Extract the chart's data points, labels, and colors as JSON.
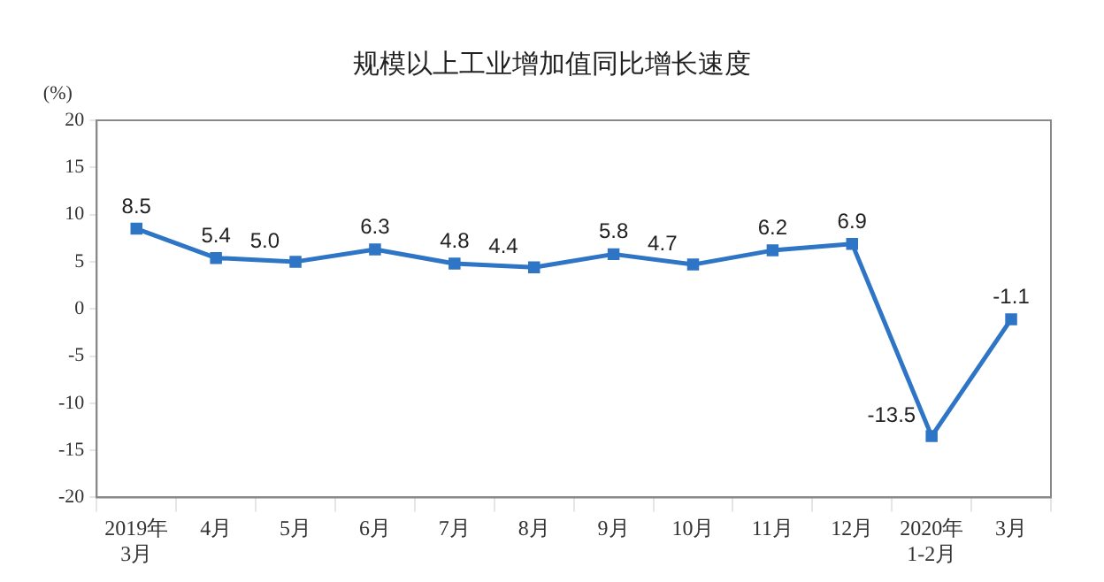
{
  "chart_data": {
    "type": "line",
    "title": "规模以上工业增加值同比增长速度",
    "ylabel": "(%)",
    "categories": [
      "2019年\n3月",
      "4月",
      "5月",
      "6月",
      "7月",
      "8月",
      "9月",
      "10月",
      "11月",
      "12月",
      "2020年\n1-2月",
      "3月"
    ],
    "series": [
      {
        "color": "#2e75c6",
        "values": [
          8.5,
          5.4,
          5.0,
          6.3,
          4.8,
          4.4,
          5.8,
          4.7,
          6.2,
          6.9,
          -13.5,
          -1.1
        ],
        "value_labels": [
          "8.5",
          "5.4",
          "5.0",
          "6.3",
          "4.8",
          "4.4",
          "5.8",
          "4.7",
          "6.2",
          "6.9",
          "-13.5",
          "-1.1"
        ]
      }
    ],
    "ylim": [
      -20,
      20
    ],
    "yticks": [
      -20,
      -15,
      -10,
      -5,
      0,
      5,
      10,
      15,
      20
    ],
    "grid": false,
    "legend": false,
    "marker": "square"
  }
}
